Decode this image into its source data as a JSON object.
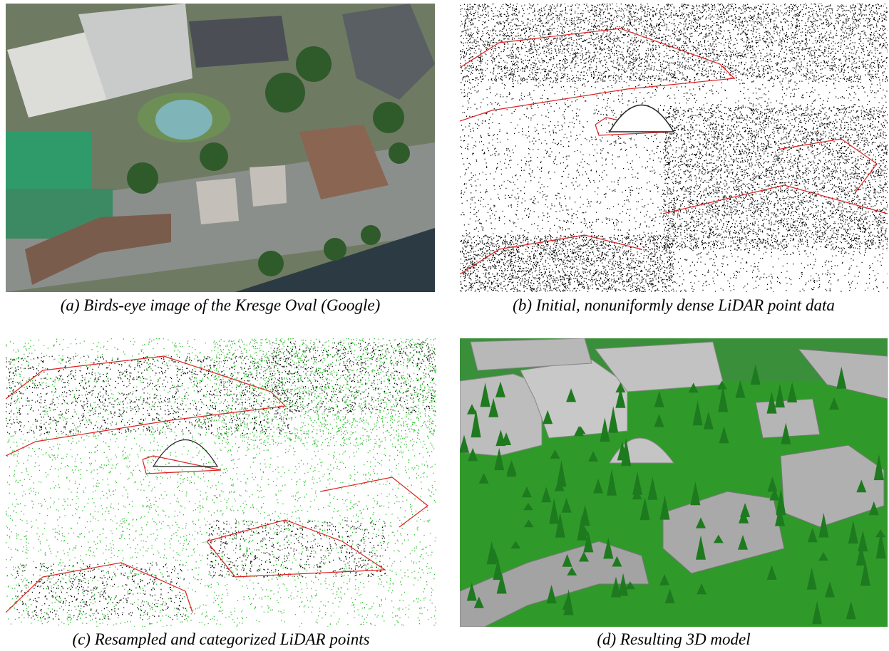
{
  "panels": [
    {
      "caption": "(a) Birds-eye image of the Kresge Oval (Google)"
    },
    {
      "caption": "(b) Initial, nonuniformly dense LiDAR point data"
    },
    {
      "caption": "(c) Resampled and categorized LiDAR points"
    },
    {
      "caption": "(d) Resulting 3D model"
    }
  ]
}
